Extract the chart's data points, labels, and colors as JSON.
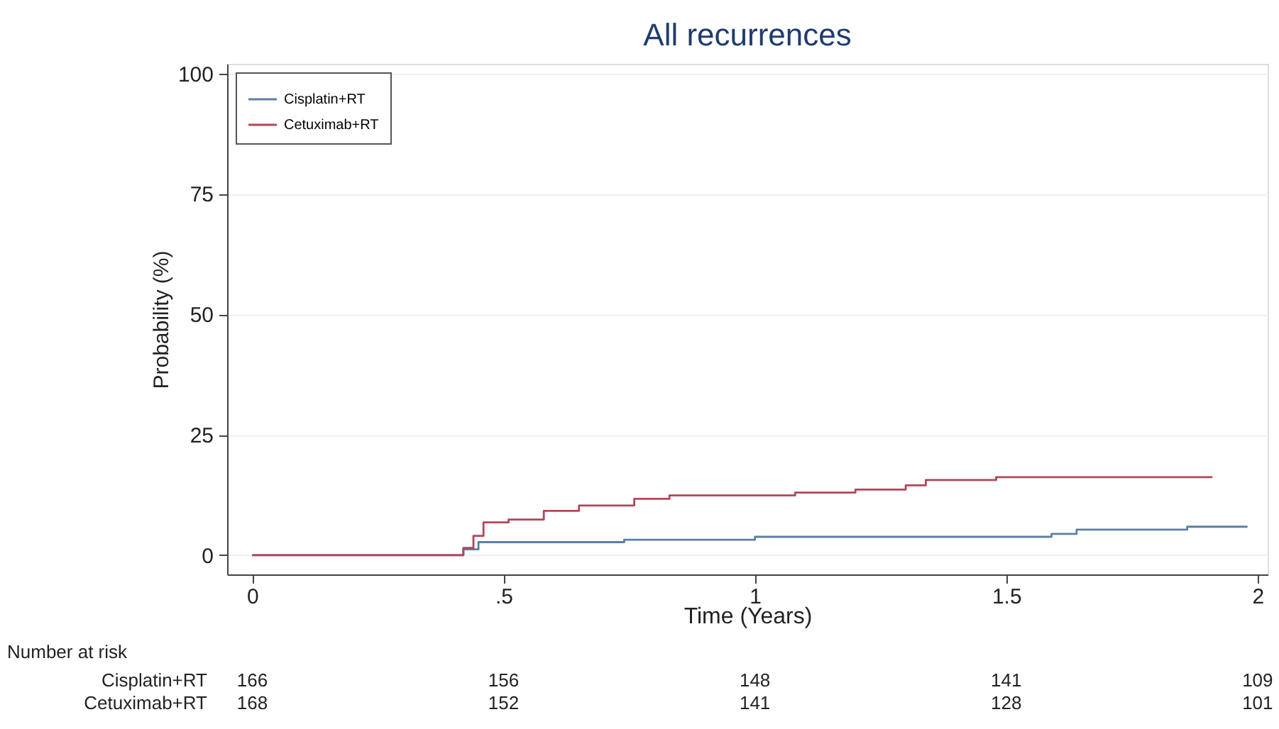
{
  "chart_data": {
    "type": "step",
    "title": "All recurrences",
    "xlabel": "Time (Years)",
    "ylabel": "Probability (%)",
    "xlim": [
      -0.05,
      2.02
    ],
    "ylim": [
      -4,
      102
    ],
    "xticks": [
      0,
      {
        "value": 0.5,
        "label": ".5"
      },
      1,
      1.5,
      2
    ],
    "yticks": [
      0,
      25,
      50,
      75,
      100
    ],
    "grid": "y",
    "legend": "top left",
    "line_style": "solid",
    "marker": "none",
    "series": [
      {
        "name": "Cisplatin+RT",
        "color": "#5b7fa6",
        "x": [
          0,
          0.4,
          0.42,
          0.45,
          0.74,
          1.0,
          1.59,
          1.64,
          1.86,
          1.98
        ],
        "values": [
          0,
          0,
          1.2,
          2.7,
          3.2,
          3.8,
          4.4,
          5.3,
          5.9,
          5.9
        ]
      },
      {
        "name": "Cetuximab+RT",
        "color": "#b3455a",
        "x": [
          0,
          0.4,
          0.42,
          0.44,
          0.46,
          0.51,
          0.58,
          0.65,
          0.76,
          0.83,
          1.08,
          1.2,
          1.3,
          1.34,
          1.48,
          1.91
        ],
        "values": [
          0,
          0,
          1.5,
          4,
          6.8,
          7.4,
          9.2,
          10.3,
          11.7,
          12.4,
          13,
          13.6,
          14.5,
          15.6,
          16.2,
          16.2
        ]
      }
    ],
    "annotations": [
      "Number at risk",
      "Cisplatin+RT",
      "166",
      "156",
      "148",
      "141",
      "109",
      "Cetuximab+RT",
      "168",
      "152",
      "141",
      "128",
      "101"
    ]
  }
}
